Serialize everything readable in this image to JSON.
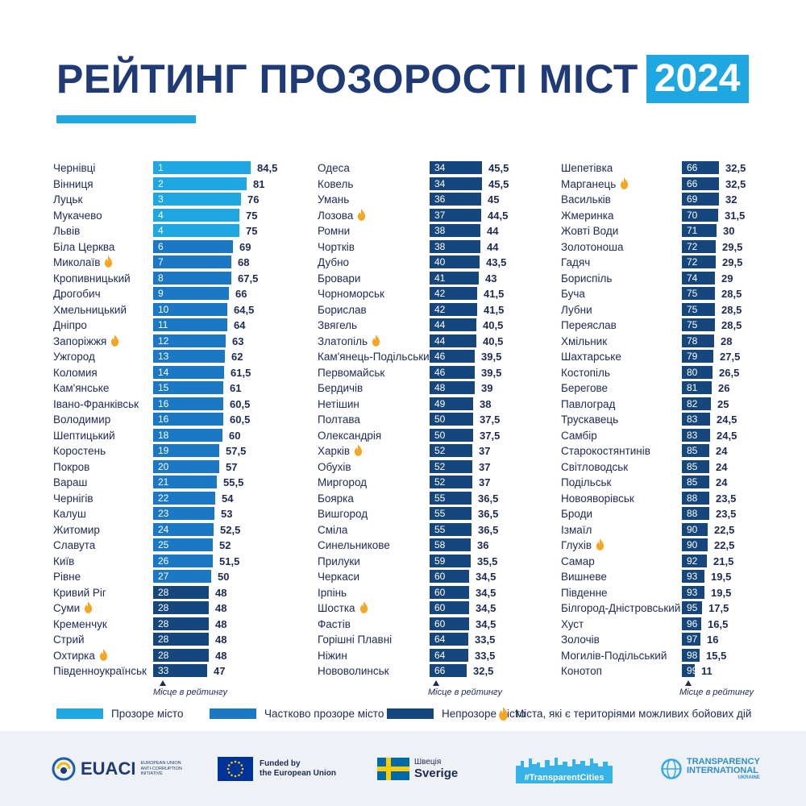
{
  "header": {
    "title": "РЕЙТИНГ ПРОЗОРОСТІ МІСТ",
    "year": "2024"
  },
  "colors": {
    "transparent": "#1ea7e1",
    "partial": "#1b78c4",
    "opaque": "#15477e",
    "title": "#1f3a74",
    "fire": "#f5a623",
    "footer_bg": "#eef1f5"
  },
  "rank_note": "Місце в рейтингу",
  "legend": {
    "transparent": "Прозоре місто",
    "partial": "Частково прозоре місто",
    "opaque": "Непрозоре місто",
    "combat": "Міста, які є територіями можливих бойових дій"
  },
  "chart_data": {
    "type": "bar",
    "title": "РЕЙТИНГ ПРОЗОРОСТІ МІСТ 2024",
    "xlabel": "Місце в рейтингу",
    "ylabel": "",
    "ylim": [
      0,
      100
    ],
    "categories_legend": [
      "Прозоре місто",
      "Частково прозоре місто",
      "Непрозоре місто"
    ],
    "columns": [
      [
        {
          "city": "Чернівці",
          "rank": "1",
          "score": "84,5",
          "cat": "transparent",
          "fire": false
        },
        {
          "city": "Вінниця",
          "rank": "2",
          "score": "81",
          "cat": "transparent",
          "fire": false
        },
        {
          "city": "Луцьк",
          "rank": "3",
          "score": "76",
          "cat": "transparent",
          "fire": false
        },
        {
          "city": "Мукачево",
          "rank": "4",
          "score": "75",
          "cat": "transparent",
          "fire": false
        },
        {
          "city": "Львів",
          "rank": "4",
          "score": "75",
          "cat": "transparent",
          "fire": false
        },
        {
          "city": "Біла Церква",
          "rank": "6",
          "score": "69",
          "cat": "partial",
          "fire": false
        },
        {
          "city": "Миколаїв",
          "rank": "7",
          "score": "68",
          "cat": "partial",
          "fire": true
        },
        {
          "city": "Кропивницький",
          "rank": "8",
          "score": "67,5",
          "cat": "partial",
          "fire": false
        },
        {
          "city": "Дрогобич",
          "rank": "9",
          "score": "66",
          "cat": "partial",
          "fire": false
        },
        {
          "city": "Хмельницький",
          "rank": "10",
          "score": "64,5",
          "cat": "partial",
          "fire": false
        },
        {
          "city": "Дніпро",
          "rank": "11",
          "score": "64",
          "cat": "partial",
          "fire": false
        },
        {
          "city": "Запоріжжя",
          "rank": "12",
          "score": "63",
          "cat": "partial",
          "fire": true
        },
        {
          "city": "Ужгород",
          "rank": "13",
          "score": "62",
          "cat": "partial",
          "fire": false
        },
        {
          "city": "Коломия",
          "rank": "14",
          "score": "61,5",
          "cat": "partial",
          "fire": false
        },
        {
          "city": "Кам'янське",
          "rank": "15",
          "score": "61",
          "cat": "partial",
          "fire": false
        },
        {
          "city": "Івано-Франківськ",
          "rank": "16",
          "score": "60,5",
          "cat": "partial",
          "fire": false
        },
        {
          "city": "Володимир",
          "rank": "16",
          "score": "60,5",
          "cat": "partial",
          "fire": false
        },
        {
          "city": "Шептицький",
          "rank": "18",
          "score": "60",
          "cat": "partial",
          "fire": false
        },
        {
          "city": "Коростень",
          "rank": "19",
          "score": "57,5",
          "cat": "partial",
          "fire": false
        },
        {
          "city": "Покров",
          "rank": "20",
          "score": "57",
          "cat": "partial",
          "fire": false
        },
        {
          "city": "Вараш",
          "rank": "21",
          "score": "55,5",
          "cat": "partial",
          "fire": false
        },
        {
          "city": "Чернігів",
          "rank": "22",
          "score": "54",
          "cat": "partial",
          "fire": false
        },
        {
          "city": "Калуш",
          "rank": "23",
          "score": "53",
          "cat": "partial",
          "fire": false
        },
        {
          "city": "Житомир",
          "rank": "24",
          "score": "52,5",
          "cat": "partial",
          "fire": false
        },
        {
          "city": "Славута",
          "rank": "25",
          "score": "52",
          "cat": "partial",
          "fire": false
        },
        {
          "city": "Київ",
          "rank": "26",
          "score": "51,5",
          "cat": "partial",
          "fire": false
        },
        {
          "city": "Рівне",
          "rank": "27",
          "score": "50",
          "cat": "partial",
          "fire": false
        },
        {
          "city": "Кривий Ріг",
          "rank": "28",
          "score": "48",
          "cat": "opaque",
          "fire": false
        },
        {
          "city": "Суми",
          "rank": "28",
          "score": "48",
          "cat": "opaque",
          "fire": true
        },
        {
          "city": "Кременчук",
          "rank": "28",
          "score": "48",
          "cat": "opaque",
          "fire": false
        },
        {
          "city": "Стрий",
          "rank": "28",
          "score": "48",
          "cat": "opaque",
          "fire": false
        },
        {
          "city": "Охтирка",
          "rank": "28",
          "score": "48",
          "cat": "opaque",
          "fire": true
        },
        {
          "city": "Південноукраїнськ",
          "rank": "33",
          "score": "47",
          "cat": "opaque",
          "fire": false
        }
      ],
      [
        {
          "city": "Одеса",
          "rank": "34",
          "score": "45,5",
          "cat": "opaque",
          "fire": false
        },
        {
          "city": "Ковель",
          "rank": "34",
          "score": "45,5",
          "cat": "opaque",
          "fire": false
        },
        {
          "city": "Умань",
          "rank": "36",
          "score": "45",
          "cat": "opaque",
          "fire": false
        },
        {
          "city": "Лозова",
          "rank": "37",
          "score": "44,5",
          "cat": "opaque",
          "fire": true
        },
        {
          "city": "Ромни",
          "rank": "38",
          "score": "44",
          "cat": "opaque",
          "fire": false
        },
        {
          "city": "Чортків",
          "rank": "38",
          "score": "44",
          "cat": "opaque",
          "fire": false
        },
        {
          "city": "Дубно",
          "rank": "40",
          "score": "43,5",
          "cat": "opaque",
          "fire": false
        },
        {
          "city": "Бровари",
          "rank": "41",
          "score": "43",
          "cat": "opaque",
          "fire": false
        },
        {
          "city": "Чорноморськ",
          "rank": "42",
          "score": "41,5",
          "cat": "opaque",
          "fire": false
        },
        {
          "city": "Борислав",
          "rank": "42",
          "score": "41,5",
          "cat": "opaque",
          "fire": false
        },
        {
          "city": "Звягель",
          "rank": "44",
          "score": "40,5",
          "cat": "opaque",
          "fire": false
        },
        {
          "city": "Златопіль",
          "rank": "44",
          "score": "40,5",
          "cat": "opaque",
          "fire": true
        },
        {
          "city": "Кам'янець-Подільський",
          "rank": "46",
          "score": "39,5",
          "cat": "opaque",
          "fire": false
        },
        {
          "city": "Первомайськ",
          "rank": "46",
          "score": "39,5",
          "cat": "opaque",
          "fire": false
        },
        {
          "city": "Бердичів",
          "rank": "48",
          "score": "39",
          "cat": "opaque",
          "fire": false
        },
        {
          "city": "Нетішин",
          "rank": "49",
          "score": "38",
          "cat": "opaque",
          "fire": false
        },
        {
          "city": "Полтава",
          "rank": "50",
          "score": "37,5",
          "cat": "opaque",
          "fire": false
        },
        {
          "city": "Олександрія",
          "rank": "50",
          "score": "37,5",
          "cat": "opaque",
          "fire": false
        },
        {
          "city": "Харків",
          "rank": "52",
          "score": "37",
          "cat": "opaque",
          "fire": true
        },
        {
          "city": "Обухів",
          "rank": "52",
          "score": "37",
          "cat": "opaque",
          "fire": false
        },
        {
          "city": "Миргород",
          "rank": "52",
          "score": "37",
          "cat": "opaque",
          "fire": false
        },
        {
          "city": "Боярка",
          "rank": "55",
          "score": "36,5",
          "cat": "opaque",
          "fire": false
        },
        {
          "city": "Вишгород",
          "rank": "55",
          "score": "36,5",
          "cat": "opaque",
          "fire": false
        },
        {
          "city": "Сміла",
          "rank": "55",
          "score": "36,5",
          "cat": "opaque",
          "fire": false
        },
        {
          "city": "Синельникове",
          "rank": "58",
          "score": "36",
          "cat": "opaque",
          "fire": false
        },
        {
          "city": "Прилуки",
          "rank": "59",
          "score": "35,5",
          "cat": "opaque",
          "fire": false
        },
        {
          "city": "Черкаси",
          "rank": "60",
          "score": "34,5",
          "cat": "opaque",
          "fire": false
        },
        {
          "city": "Ірпінь",
          "rank": "60",
          "score": "34,5",
          "cat": "opaque",
          "fire": false
        },
        {
          "city": "Шостка",
          "rank": "60",
          "score": "34,5",
          "cat": "opaque",
          "fire": true
        },
        {
          "city": "Фастів",
          "rank": "60",
          "score": "34,5",
          "cat": "opaque",
          "fire": false
        },
        {
          "city": "Горішні Плавні",
          "rank": "64",
          "score": "33,5",
          "cat": "opaque",
          "fire": false
        },
        {
          "city": "Ніжин",
          "rank": "64",
          "score": "33,5",
          "cat": "opaque",
          "fire": false
        },
        {
          "city": "Нововолинськ",
          "rank": "66",
          "score": "32,5",
          "cat": "opaque",
          "fire": false
        }
      ],
      [
        {
          "city": "Шепетівка",
          "rank": "66",
          "score": "32,5",
          "cat": "opaque",
          "fire": false
        },
        {
          "city": "Марганець",
          "rank": "66",
          "score": "32,5",
          "cat": "opaque",
          "fire": true
        },
        {
          "city": "Васильків",
          "rank": "69",
          "score": "32",
          "cat": "opaque",
          "fire": false
        },
        {
          "city": "Жмеринка",
          "rank": "70",
          "score": "31,5",
          "cat": "opaque",
          "fire": false
        },
        {
          "city": "Жовті Води",
          "rank": "71",
          "score": "30",
          "cat": "opaque",
          "fire": false
        },
        {
          "city": "Золотоноша",
          "rank": "72",
          "score": "29,5",
          "cat": "opaque",
          "fire": false
        },
        {
          "city": "Гадяч",
          "rank": "72",
          "score": "29,5",
          "cat": "opaque",
          "fire": false
        },
        {
          "city": "Бориспіль",
          "rank": "74",
          "score": "29",
          "cat": "opaque",
          "fire": false
        },
        {
          "city": "Буча",
          "rank": "75",
          "score": "28,5",
          "cat": "opaque",
          "fire": false
        },
        {
          "city": "Лубни",
          "rank": "75",
          "score": "28,5",
          "cat": "opaque",
          "fire": false
        },
        {
          "city": "Переяслав",
          "rank": "75",
          "score": "28,5",
          "cat": "opaque",
          "fire": false
        },
        {
          "city": "Хмільник",
          "rank": "78",
          "score": "28",
          "cat": "opaque",
          "fire": false
        },
        {
          "city": "Шахтарське",
          "rank": "79",
          "score": "27,5",
          "cat": "opaque",
          "fire": false
        },
        {
          "city": "Костопіль",
          "rank": "80",
          "score": "26,5",
          "cat": "opaque",
          "fire": false
        },
        {
          "city": "Берегове",
          "rank": "81",
          "score": "26",
          "cat": "opaque",
          "fire": false
        },
        {
          "city": "Павлоград",
          "rank": "82",
          "score": "25",
          "cat": "opaque",
          "fire": false
        },
        {
          "city": "Трускавець",
          "rank": "83",
          "score": "24,5",
          "cat": "opaque",
          "fire": false
        },
        {
          "city": "Самбір",
          "rank": "83",
          "score": "24,5",
          "cat": "opaque",
          "fire": false
        },
        {
          "city": "Старокостянтинів",
          "rank": "85",
          "score": "24",
          "cat": "opaque",
          "fire": false
        },
        {
          "city": "Світловодськ",
          "rank": "85",
          "score": "24",
          "cat": "opaque",
          "fire": false
        },
        {
          "city": "Подільськ",
          "rank": "85",
          "score": "24",
          "cat": "opaque",
          "fire": false
        },
        {
          "city": "Новояворівськ",
          "rank": "88",
          "score": "23,5",
          "cat": "opaque",
          "fire": false
        },
        {
          "city": "Броди",
          "rank": "88",
          "score": "23,5",
          "cat": "opaque",
          "fire": false
        },
        {
          "city": "Ізмаїл",
          "rank": "90",
          "score": "22,5",
          "cat": "opaque",
          "fire": false
        },
        {
          "city": "Глухів",
          "rank": "90",
          "score": "22,5",
          "cat": "opaque",
          "fire": true
        },
        {
          "city": "Самар",
          "rank": "92",
          "score": "21,5",
          "cat": "opaque",
          "fire": false
        },
        {
          "city": "Вишневе",
          "rank": "93",
          "score": "19,5",
          "cat": "opaque",
          "fire": false
        },
        {
          "city": "Південне",
          "rank": "93",
          "score": "19,5",
          "cat": "opaque",
          "fire": false
        },
        {
          "city": "Білгород-Дністровський",
          "rank": "95",
          "score": "17,5",
          "cat": "opaque",
          "fire": false
        },
        {
          "city": "Хуст",
          "rank": "96",
          "score": "16,5",
          "cat": "opaque",
          "fire": false
        },
        {
          "city": "Золочів",
          "rank": "97",
          "score": "16",
          "cat": "opaque",
          "fire": false
        },
        {
          "city": "Могилів-Подільський",
          "rank": "98",
          "score": "15,5",
          "cat": "opaque",
          "fire": false
        },
        {
          "city": "Конотоп",
          "rank": "99",
          "score": "11",
          "cat": "opaque",
          "fire": false
        }
      ]
    ]
  },
  "footer": {
    "euaci_name": "EUACI",
    "euaci_sub1": "EUROPEAN UNION",
    "euaci_sub2": "ANTI-CORRUPTION",
    "euaci_sub3": "INITIATIVE",
    "eu_line1": "Funded by",
    "eu_line2": "the European Union",
    "sweden_line1": "Швеція",
    "sweden_line2": "Sverige",
    "hashtag": "#TransparentCities",
    "ti_line1": "TRANSPARENCY",
    "ti_line2": "INTERNATIONAL",
    "ti_line3": "UKRAINE"
  }
}
